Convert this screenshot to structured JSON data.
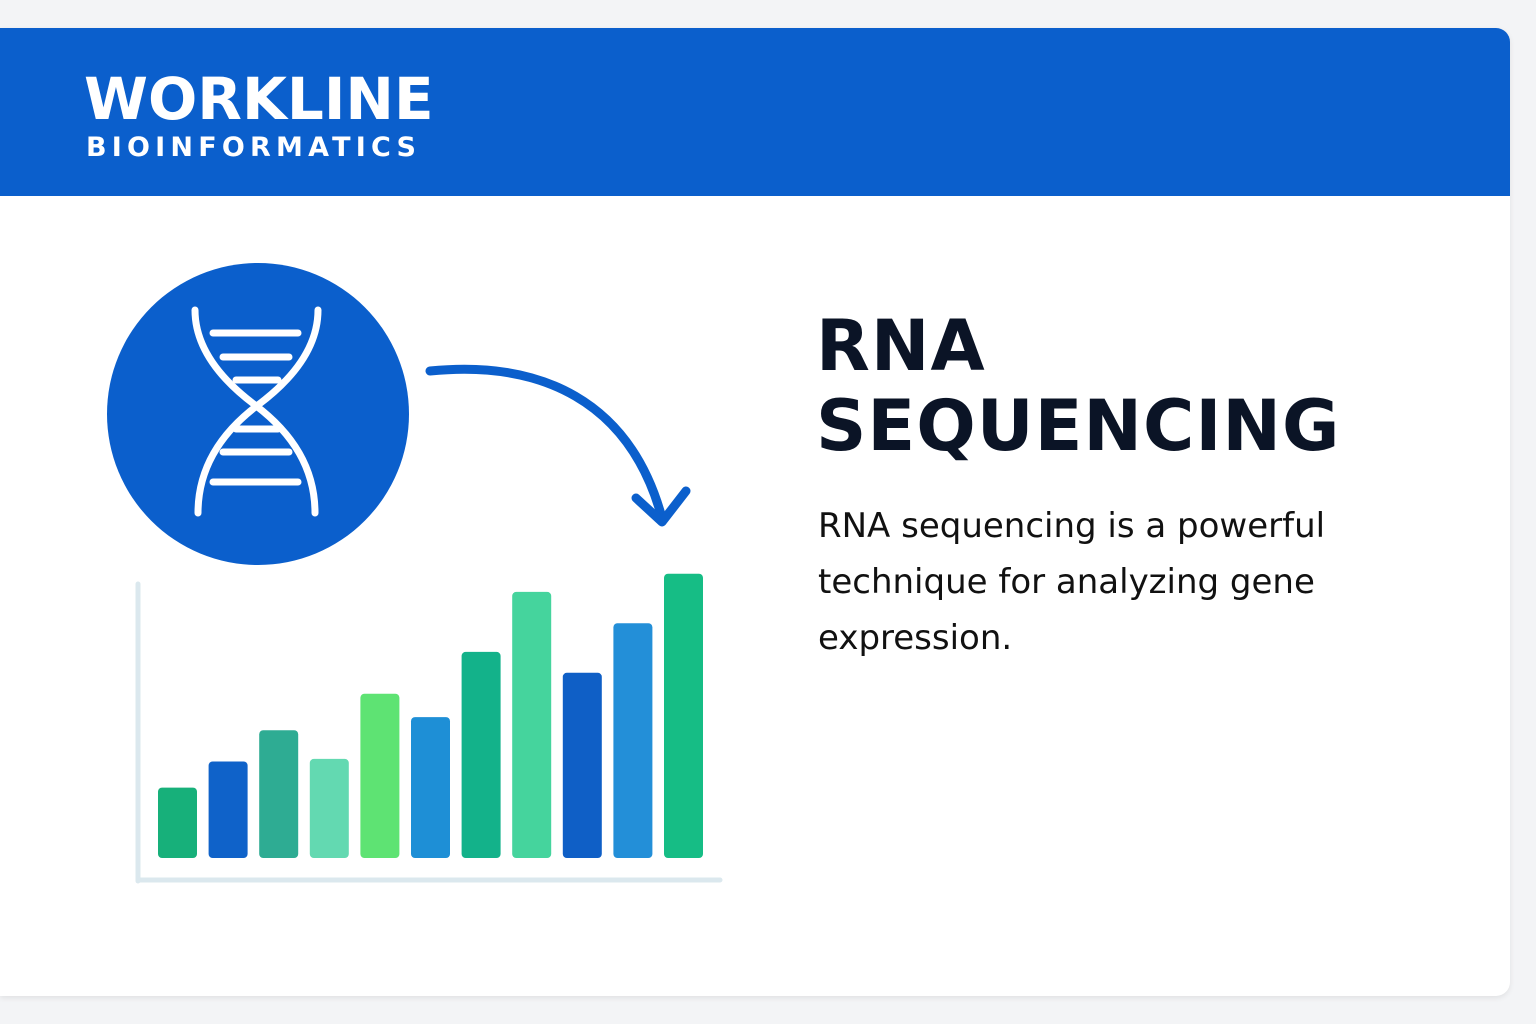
{
  "brand": {
    "name": "WORKLINE",
    "division": "BIOINFORMATICS"
  },
  "headline": {
    "line1": "RNA",
    "line2": "SEQUENCING"
  },
  "description": "RNA sequencing is a powerful technique for analyzing gene expression.",
  "icons": {
    "dna": "dna-icon",
    "arrow": "curved-arrow-icon"
  },
  "colors": {
    "brand_blue": "#0b5fcc",
    "heading": "#0b1426",
    "bar_palette": [
      "#17b07a",
      "#0f62c9",
      "#2eac93",
      "#63d9b1",
      "#5ee373",
      "#1e8fd6",
      "#13b28a",
      "#45d49d",
      "#0f5fc6",
      "#238fd8",
      "#16bd85"
    ]
  },
  "chart_data": {
    "type": "bar",
    "values": [
      27,
      37,
      49,
      38,
      63,
      54,
      79,
      102,
      71,
      90,
      109
    ],
    "ylim": [
      0,
      115
    ],
    "grid": false
  }
}
